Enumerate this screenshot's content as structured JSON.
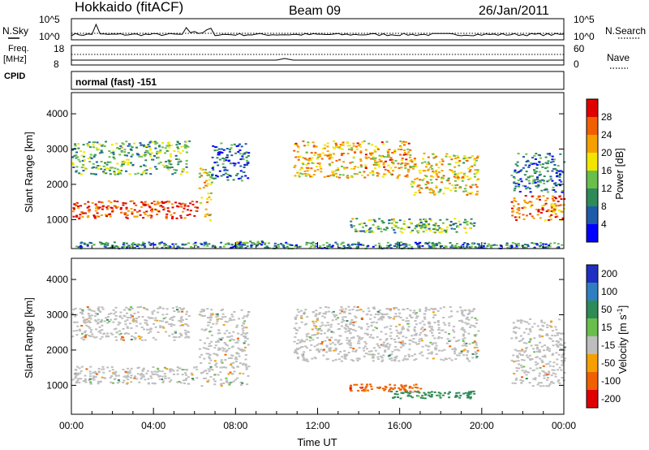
{
  "header": {
    "site": "Hokkaido (fitACF)",
    "beam": "Beam 09",
    "date": "26/Jan/2011"
  },
  "noise_panel": {
    "left_label": "N.Sky",
    "right_label": "N.Search",
    "left_ticks": [
      "10^5",
      "10^0"
    ],
    "right_ticks": [
      "10^5",
      "10^0"
    ]
  },
  "freq_panel": {
    "left_label_1": "Freq.",
    "left_label_2": "[MHz]",
    "right_label": "Nave",
    "left_ticks": [
      "18",
      "8"
    ],
    "right_ticks": [
      "60",
      "0"
    ],
    "freq_value_mhz": 12,
    "nave_value": 20
  },
  "cpid": {
    "label": "CPID",
    "value": "normal (fast) -151"
  },
  "chart_data": [
    {
      "type": "heatmap",
      "name": "power",
      "ylabel": "Slant Range [km]",
      "xlabel": "",
      "x_ticks": [
        "00:00",
        "04:00",
        "08:00",
        "12:00",
        "16:00",
        "20:00",
        "00:00"
      ],
      "x_range_hours": [
        0,
        24
      ],
      "y_ticks": [
        1000,
        2000,
        3000,
        4000
      ],
      "ylim": [
        180,
        4600
      ],
      "colorbar": {
        "label": "Power [dB]",
        "ticks": [
          "4",
          "8",
          "12",
          "16",
          "20",
          "24",
          "28"
        ],
        "range": [
          0,
          30
        ],
        "colors": [
          "#0000ff",
          "#1e5ba8",
          "#2e8b57",
          "#6abf4b",
          "#f2e600",
          "#f5a000",
          "#f06000",
          "#e00000"
        ]
      },
      "regions": [
        {
          "t0": 0.0,
          "t1": 6.1,
          "r0": 1050,
          "r1": 1550,
          "value": 26
        },
        {
          "t0": 0.0,
          "t1": 5.7,
          "r0": 2300,
          "r1": 3250,
          "value": 12
        },
        {
          "t0": 6.2,
          "t1": 6.8,
          "r0": 1000,
          "r1": 2500,
          "value": 18
        },
        {
          "t0": 6.8,
          "t1": 8.6,
          "r0": 2100,
          "r1": 3200,
          "value": 6
        },
        {
          "t0": 8.0,
          "t1": 9.5,
          "r0": 300,
          "r1": 420,
          "value": 14
        },
        {
          "t0": 10.8,
          "t1": 16.5,
          "r0": 2200,
          "r1": 3250,
          "value": 20
        },
        {
          "t0": 16.5,
          "t1": 19.8,
          "r0": 1700,
          "r1": 2900,
          "value": 18
        },
        {
          "t0": 13.5,
          "t1": 19.6,
          "r0": 650,
          "r1": 1050,
          "value": 12
        },
        {
          "t0": 21.4,
          "t1": 24.0,
          "r0": 1000,
          "r1": 1700,
          "value": 24
        },
        {
          "t0": 21.4,
          "t1": 24.0,
          "r0": 1800,
          "r1": 2900,
          "value": 8
        },
        {
          "t0": 0.0,
          "t1": 24.0,
          "r0": 200,
          "r1": 380,
          "value": 8
        }
      ]
    },
    {
      "type": "heatmap",
      "name": "velocity",
      "ylabel": "Slant Range [km]",
      "xlabel": "Time UT",
      "x_ticks": [
        "00:00",
        "04:00",
        "08:00",
        "12:00",
        "16:00",
        "20:00",
        "00:00"
      ],
      "x_range_hours": [
        0,
        24
      ],
      "y_ticks": [
        1000,
        2000,
        3000,
        4000
      ],
      "ylim": [
        180,
        4600
      ],
      "colorbar": {
        "label": "Velocity [m s^-1]",
        "ticks": [
          "200",
          "100",
          "50",
          "15",
          "-15",
          "-50",
          "-100",
          "-200"
        ],
        "colors": [
          "#1f2fbf",
          "#2f7fc0",
          "#2e8b57",
          "#6abf4b",
          "#bebebe",
          "#f5a000",
          "#f06000",
          "#e00000"
        ]
      },
      "regions": [
        {
          "t0": 0.0,
          "t1": 6.1,
          "r0": 1050,
          "r1": 1550,
          "value": 0
        },
        {
          "t0": 0.0,
          "t1": 5.7,
          "r0": 2300,
          "r1": 3250,
          "value": 0
        },
        {
          "t0": 6.2,
          "t1": 8.6,
          "r0": 1000,
          "r1": 3200,
          "value": 0
        },
        {
          "t0": 10.8,
          "t1": 19.8,
          "r0": 1700,
          "r1": 3250,
          "value": 0
        },
        {
          "t0": 13.5,
          "t1": 17.0,
          "r0": 850,
          "r1": 1050,
          "value": -60
        },
        {
          "t0": 15.5,
          "t1": 19.6,
          "r0": 650,
          "r1": 850,
          "value": 40
        },
        {
          "t0": 21.4,
          "t1": 24.0,
          "r0": 1000,
          "r1": 2900,
          "value": 0
        }
      ]
    }
  ]
}
